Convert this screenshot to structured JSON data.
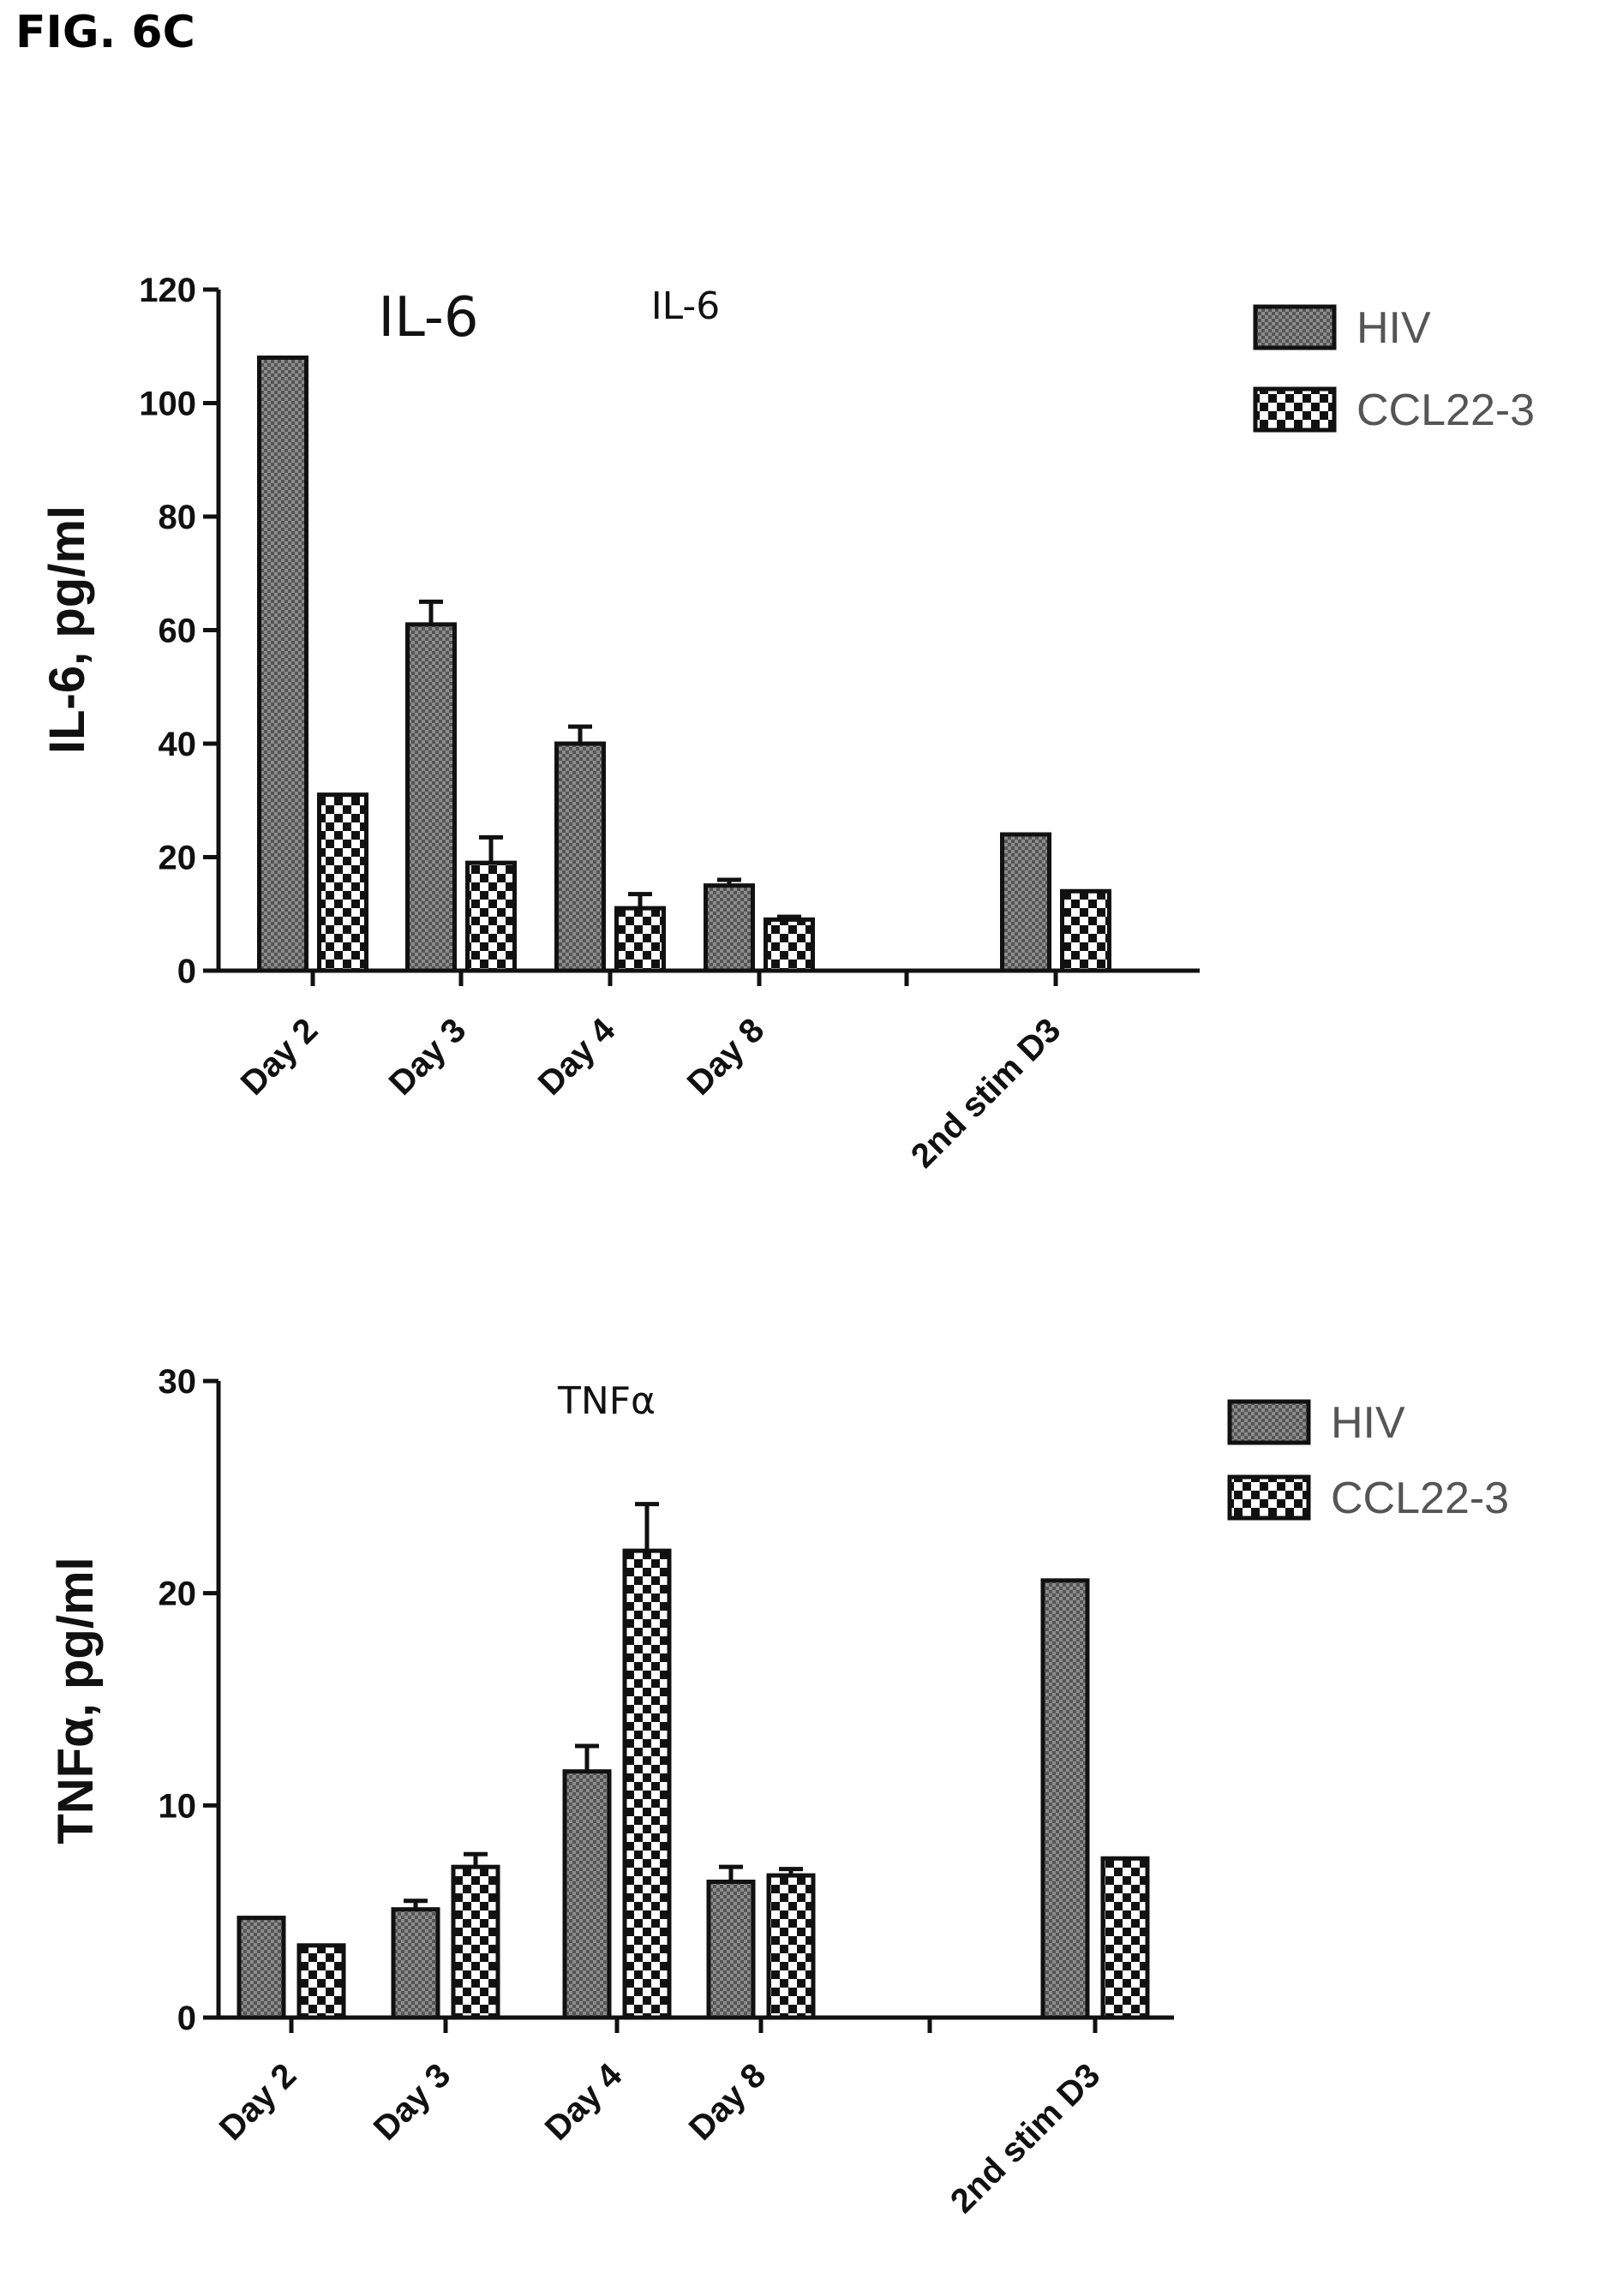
{
  "figure_label": "FIG. 6C",
  "colors": {
    "axis": "#111111",
    "hiv_fill": "#8c8c8c",
    "ccl_fill": "#ffffff",
    "pattern_ink": "#111111"
  },
  "chart_data": [
    {
      "type": "bar",
      "titles": [
        "IL-6",
        "IL-6"
      ],
      "ylabel": "IL-6, pg/ml",
      "xlabel": "",
      "ylim": [
        0,
        120
      ],
      "yticks": [
        0,
        20,
        40,
        60,
        80,
        100,
        120
      ],
      "categories": [
        "Day 2",
        "Day 3",
        "Day 4",
        "Day 8",
        "",
        "2nd stim D3"
      ],
      "legend": {
        "placement": "top-right",
        "entries": [
          "HIV",
          "CCL22-3"
        ]
      },
      "series": [
        {
          "name": "HIV",
          "values": [
            108,
            61,
            40,
            15,
            null,
            24
          ],
          "errors": [
            0,
            4,
            3,
            1,
            null,
            0
          ]
        },
        {
          "name": "CCL22-3",
          "values": [
            31,
            19,
            11,
            9,
            null,
            14
          ],
          "errors": [
            0,
            4.5,
            2.5,
            0.5,
            null,
            0
          ]
        }
      ]
    },
    {
      "type": "bar",
      "titles": [
        "TNFα"
      ],
      "ylabel": "TNFα, pg/ml",
      "xlabel": "",
      "ylim": [
        0,
        30
      ],
      "yticks": [
        0,
        10,
        20,
        30
      ],
      "categories": [
        "Day 2",
        "Day 3",
        "Day 4",
        "Day 8",
        "",
        "2nd stim D3"
      ],
      "legend": {
        "placement": "top-right",
        "entries": [
          "HIV",
          "CCL22-3"
        ]
      },
      "series": [
        {
          "name": "HIV",
          "values": [
            4.7,
            5.1,
            11.6,
            6.4,
            null,
            20.6
          ],
          "errors": [
            0,
            0.4,
            1.2,
            0.7,
            null,
            0
          ]
        },
        {
          "name": "CCL22-3",
          "values": [
            3.4,
            7.1,
            22.0,
            6.7,
            null,
            7.5
          ],
          "errors": [
            0,
            0.6,
            2.2,
            0.3,
            null,
            0
          ]
        }
      ]
    }
  ]
}
